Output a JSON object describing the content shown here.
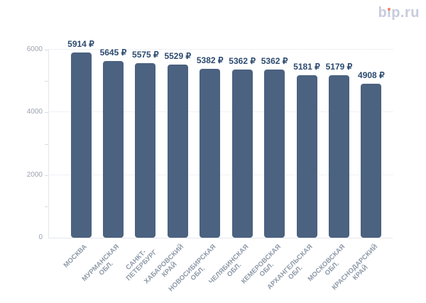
{
  "logo": {
    "text": "bip.ru",
    "text_color": "#c7cbdd",
    "dot_color": "#ef8364"
  },
  "chart_data": {
    "type": "bar",
    "title": "",
    "categories": [
      "МОСКВА",
      "МУРМАНСКАЯ ОБЛ.",
      "САНКТ-ПЕТЕРБУРГ",
      "ХАБАРОВСКИЙ КРАЙ",
      "НОВОСИБИРСКАЯ ОБЛ.",
      "ЧЕЛЯБИНСКАЯ ОБЛ.",
      "КЕМЕРОВСКАЯ ОБЛ.",
      "АРХАНГЕЛЬСКАЯ ОБЛ.",
      "МОСКОВСКАЯ ОБЛ.",
      "КРАСНОДАРСКИЙ КРАЙ"
    ],
    "category_lines": [
      [
        "МОСКВА"
      ],
      [
        "МУРМАНСКАЯ",
        "ОБЛ."
      ],
      [
        "САНКТ-",
        "ПЕТЕРБУРГ"
      ],
      [
        "ХАБАРОВСКИЙ",
        "КРАЙ"
      ],
      [
        "НОВОСИБИРСКАЯ",
        "ОБЛ."
      ],
      [
        "ЧЕЛЯБИНСКАЯ",
        "ОБЛ."
      ],
      [
        "КЕМЕРОВСКАЯ",
        "ОБЛ."
      ],
      [
        "АРХАНГЕЛЬСКАЯ",
        "ОБЛ."
      ],
      [
        "МОСКОВСКАЯ",
        "ОБЛ."
      ],
      [
        "КРАСНОДАРСКИЙ",
        "КРАЙ"
      ]
    ],
    "values": [
      5914,
      5645,
      5575,
      5529,
      5382,
      5362,
      5362,
      5181,
      5179,
      4908
    ],
    "unit": "₽",
    "value_labels": [
      "5914 ₽",
      "5645 ₽",
      "5575 ₽",
      "5529 ₽",
      "5382 ₽",
      "5362 ₽",
      "5362 ₽",
      "5181 ₽",
      "5179 ₽",
      "4908 ₽"
    ],
    "xlabel": "",
    "ylabel": "",
    "ylim": [
      0,
      6000
    ],
    "y_major_ticks": [
      0,
      2000,
      4000,
      6000
    ],
    "y_minor_ticks": [
      1000,
      3000,
      5000
    ],
    "grid": {
      "horizontal_dotted_at": [
        2000,
        4000,
        6000
      ]
    },
    "legend": "none",
    "colors": {
      "bar": "#4b6280",
      "value_label": "#2c4a6e",
      "y_tick_label": "#9ba3af",
      "x_tick_label": "#8d99a8",
      "axis_line": "#e4e7ee",
      "tick_mark": "#d8dce5",
      "gridline": "#dfe3ec",
      "background": "#ffffff"
    }
  }
}
